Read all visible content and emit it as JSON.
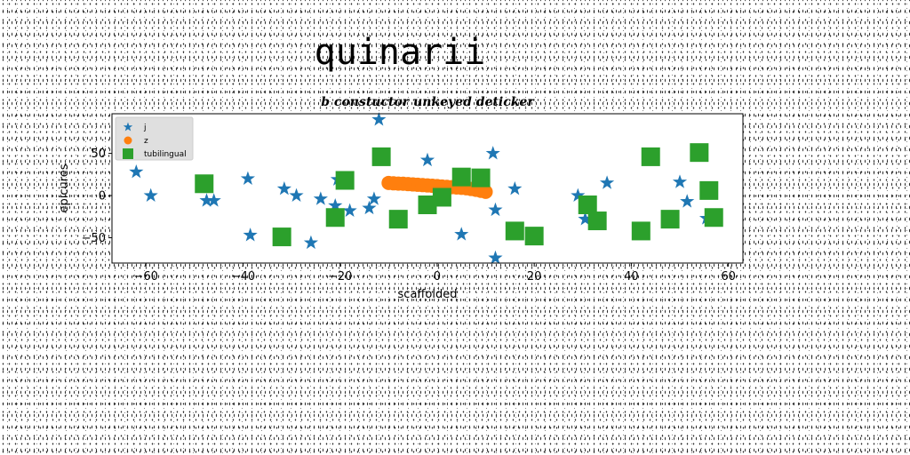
{
  "suptitle": "quinarii",
  "chart_data": {
    "type": "scatter",
    "title": "b constuctor unkeyed deticker",
    "xlabel": "scaffolded",
    "ylabel": "epicures",
    "xlim": [
      -67,
      63
    ],
    "ylim": [
      -80,
      97
    ],
    "xticks": [
      -60,
      -40,
      -20,
      0,
      20,
      40,
      60
    ],
    "yticks": [
      -50,
      0,
      50
    ],
    "grid": false,
    "legend_position": "top-left",
    "series": [
      {
        "name": "j",
        "marker": "star",
        "color": "#1f77b4",
        "x": [
          -62,
          -59,
          -47.5,
          -46,
          -39,
          -38.5,
          -31.5,
          -29,
          -26,
          -24,
          -21,
          -20.5,
          -18,
          -14,
          -13,
          -12,
          -2,
          5,
          11.5,
          12,
          12,
          16,
          29,
          30.5,
          35,
          50,
          51.5,
          55.5
        ],
        "y": [
          28,
          0,
          -6,
          -6,
          20,
          -47,
          8,
          0,
          -56,
          -4,
          -12,
          19,
          -18,
          -15,
          -4,
          90,
          42,
          -46,
          50,
          -17,
          -74,
          8,
          0,
          -28,
          15,
          16,
          -7,
          -27
        ]
      },
      {
        "name": "z",
        "marker": "circle",
        "color": "#ff7f0e",
        "x": [
          -10,
          -9,
          -8,
          -7,
          -6,
          -5,
          -4,
          -3,
          -2,
          -1,
          0,
          1,
          2,
          3,
          4,
          5,
          6,
          7,
          8,
          9,
          10
        ],
        "y": [
          15,
          14.5,
          14.2,
          14,
          13.6,
          13.2,
          12.8,
          12.4,
          12,
          11.6,
          11.2,
          10.8,
          10.4,
          10,
          9.6,
          9.2,
          8.6,
          7.8,
          6.8,
          5.6,
          4.4
        ]
      },
      {
        "name": "tubilingual",
        "marker": "square",
        "color": "#2ca02c",
        "x": [
          -48,
          -32,
          -21,
          -19,
          -11.5,
          -8,
          -2,
          1,
          5,
          9,
          16,
          20,
          31,
          33,
          42,
          44,
          48,
          54,
          56,
          57
        ],
        "y": [
          14,
          -49,
          -26,
          18,
          46,
          -28,
          -11,
          -2,
          22,
          21,
          -42,
          -48,
          -11,
          -30,
          -42,
          46,
          -28,
          51,
          6,
          -26
        ]
      }
    ]
  }
}
